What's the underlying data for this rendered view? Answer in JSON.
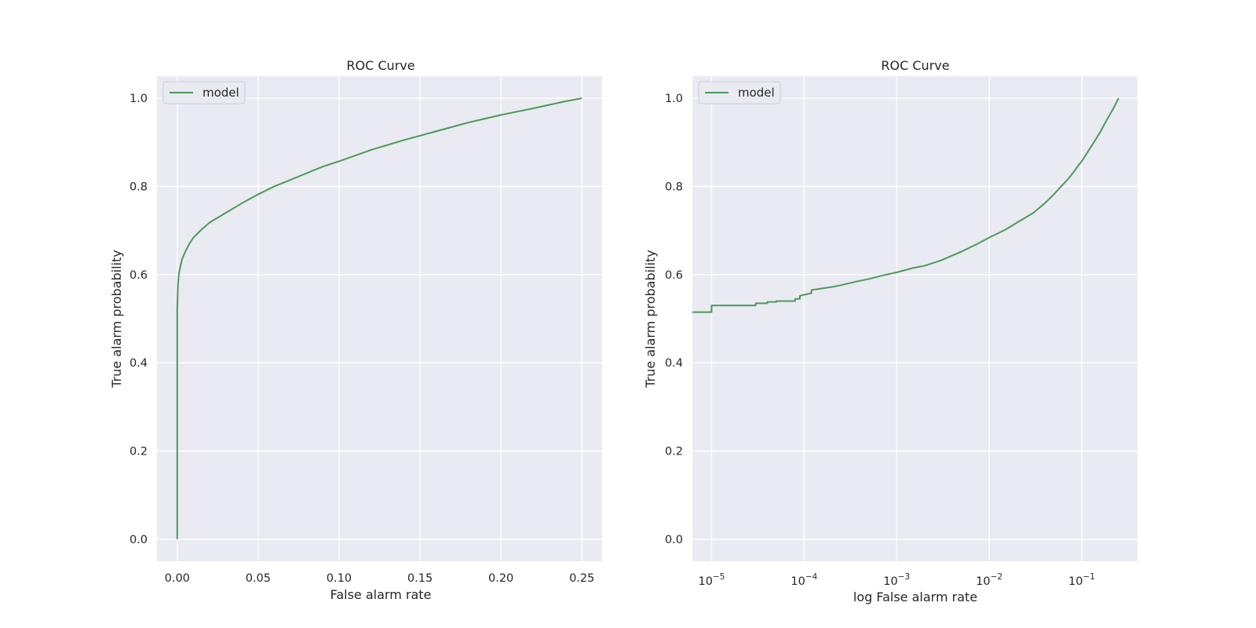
{
  "colors": {
    "page_background": "#ffffff",
    "plot_background": "#eaeaf2",
    "grid": "#ffffff",
    "series_line": "#4c9a5b",
    "text": "#262626"
  },
  "chart_data": [
    {
      "type": "line",
      "title": "ROC Curve",
      "xlabel": "False alarm rate",
      "ylabel": "True alarm probability",
      "xscale": "linear",
      "xlim": [
        -0.0125,
        0.2625
      ],
      "ylim": [
        -0.05,
        1.05
      ],
      "xticks": [
        0.0,
        0.05,
        0.1,
        0.15,
        0.2,
        0.25
      ],
      "xtick_labels": [
        "0.00",
        "0.05",
        "0.10",
        "0.15",
        "0.20",
        "0.25"
      ],
      "yticks": [
        0.0,
        0.2,
        0.4,
        0.6,
        0.8,
        1.0
      ],
      "ytick_labels": [
        "0.0",
        "0.2",
        "0.4",
        "0.6",
        "0.8",
        "1.0"
      ],
      "grid": true,
      "legend": {
        "placement": "upper-left",
        "entries": [
          "model"
        ]
      },
      "series": [
        {
          "name": "model",
          "x": [
            0.0,
            0.0,
            0.0,
            0.0005,
            0.001,
            0.002,
            0.003,
            0.005,
            0.0075,
            0.01,
            0.015,
            0.02,
            0.03,
            0.04,
            0.05,
            0.06,
            0.07,
            0.08,
            0.09,
            0.1,
            0.12,
            0.14,
            0.16,
            0.18,
            0.2,
            0.22,
            0.24,
            0.25
          ],
          "y": [
            0.0,
            0.3,
            0.52,
            0.58,
            0.6,
            0.62,
            0.635,
            0.652,
            0.67,
            0.684,
            0.702,
            0.718,
            0.74,
            0.762,
            0.782,
            0.8,
            0.815,
            0.83,
            0.845,
            0.857,
            0.883,
            0.905,
            0.925,
            0.945,
            0.962,
            0.977,
            0.993,
            1.0
          ]
        }
      ]
    },
    {
      "type": "line",
      "title": "ROC Curve",
      "xlabel": "log False alarm rate",
      "ylabel": "True alarm probability",
      "xscale": "log",
      "xlim": [
        6.2e-06,
        0.4
      ],
      "ylim": [
        -0.05,
        1.05
      ],
      "xticks": [
        1e-05,
        0.0001,
        0.001,
        0.01,
        0.1
      ],
      "xtick_labels": [
        "10",
        "10",
        "10",
        "10",
        "10"
      ],
      "xtick_exponents": [
        "−5",
        "−4",
        "−3",
        "−2",
        "−1"
      ],
      "yticks": [
        0.0,
        0.2,
        0.4,
        0.6,
        0.8,
        1.0
      ],
      "ytick_labels": [
        "0.0",
        "0.2",
        "0.4",
        "0.6",
        "0.8",
        "1.0"
      ],
      "grid": true,
      "legend": {
        "placement": "upper-left",
        "entries": [
          "model"
        ]
      },
      "series": [
        {
          "name": "model",
          "x": [
            6.2e-06,
            1e-05,
            1e-05,
            3e-05,
            3e-05,
            4e-05,
            4e-05,
            5e-05,
            5e-05,
            8e-05,
            8e-05,
            9e-05,
            9e-05,
            0.00012,
            0.00012,
            0.00015,
            0.0002,
            0.00025,
            0.0003,
            0.0004,
            0.0005,
            0.0007,
            0.001,
            0.0015,
            0.002,
            0.003,
            0.005,
            0.0075,
            0.01,
            0.015,
            0.02,
            0.03,
            0.04,
            0.05,
            0.06,
            0.07,
            0.08,
            0.09,
            0.1,
            0.12,
            0.14,
            0.16,
            0.18,
            0.2,
            0.22,
            0.25
          ],
          "y": [
            0.515,
            0.515,
            0.53,
            0.53,
            0.535,
            0.535,
            0.538,
            0.538,
            0.54,
            0.54,
            0.545,
            0.545,
            0.552,
            0.558,
            0.565,
            0.568,
            0.572,
            0.576,
            0.58,
            0.586,
            0.59,
            0.598,
            0.605,
            0.615,
            0.62,
            0.632,
            0.652,
            0.67,
            0.684,
            0.702,
            0.718,
            0.74,
            0.762,
            0.782,
            0.8,
            0.815,
            0.83,
            0.845,
            0.857,
            0.883,
            0.905,
            0.925,
            0.945,
            0.962,
            0.977,
            1.0
          ]
        }
      ]
    }
  ]
}
